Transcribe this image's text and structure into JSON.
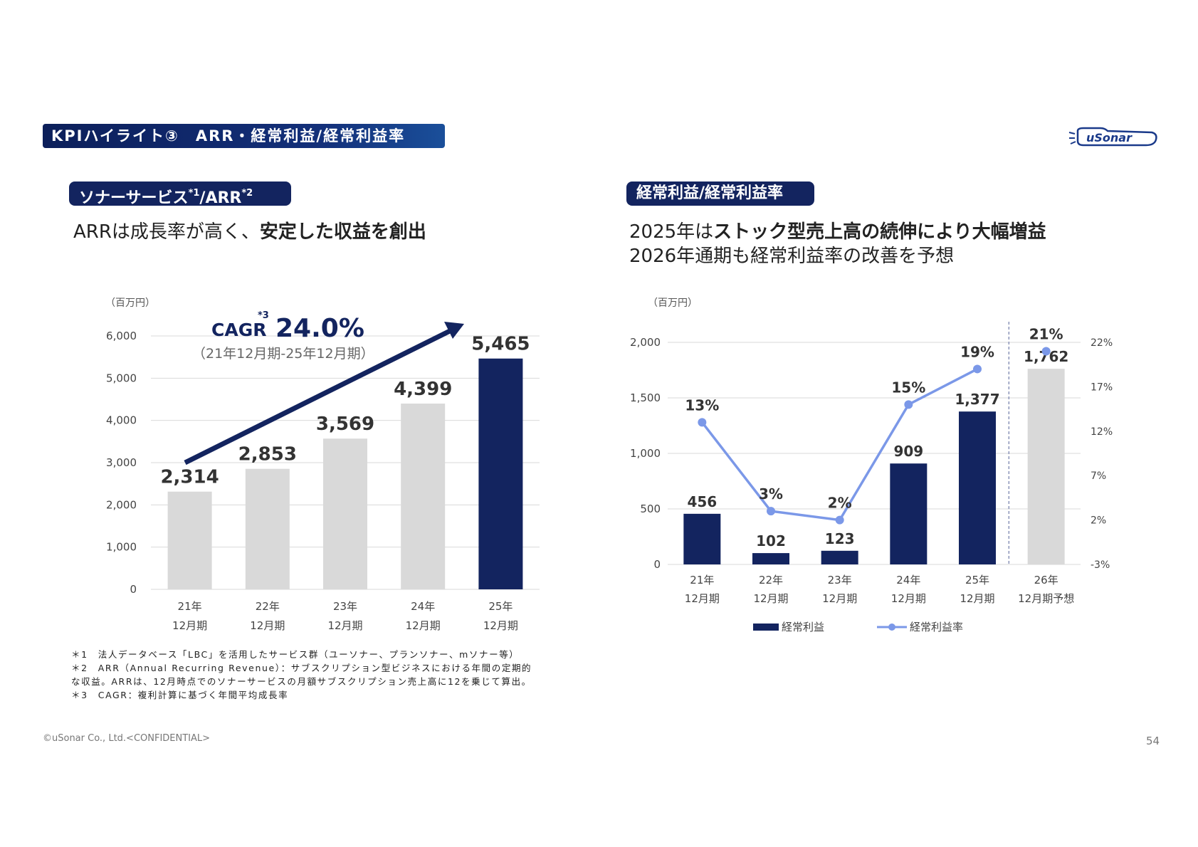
{
  "header": {
    "section_title": "KPIハイライト③　ARR・経常利益/経常利益率",
    "logo_text": "uSonar"
  },
  "left": {
    "pill_main": "ソナーサービス",
    "pill_sup1": "*1",
    "pill_mid": "/ARR",
    "pill_sup2": "*2",
    "headline_plain": "ARRは成長率が高く、",
    "headline_bold": "安定した収益を創出",
    "cagr_label": "CAGR",
    "cagr_sup": "*3",
    "cagr_value": "24.0%",
    "cagr_period": "（21年12月期-25年12月期）"
  },
  "right": {
    "pill": "経常利益/経常利益率",
    "headline1_plain": "2025年は",
    "headline1_bold": "ストック型売上高の続伸により大幅増益",
    "headline2": "2026年通期も経常利益率の改善を予想"
  },
  "notes": [
    "＊1　法人データベース「LBC」を活用したサービス群（ユーソナー、プランソナー、mソナー等）",
    "＊2　ARR（Annual Recurring Revenue）：サブスクリプション型ビジネスにおける年間の定期的",
    "な収益。ARRは、12月時点でのソナーサービスの月額サブスクリプション売上高に12を乗じて算出。",
    "＊3　CAGR：複利計算に基づく年間平均成長率"
  ],
  "footer": {
    "copyright": "©uSonar Co., Ltd.<CONFIDENTIAL>",
    "page_number": "54"
  },
  "colors": {
    "navy": "#13245f",
    "gray_bar": "#d9d9d9",
    "line": "#7b98e8",
    "grid": "#d9d9d9"
  },
  "chart_data": [
    {
      "type": "bar",
      "unit": "（百万円）",
      "categories": [
        [
          "21年",
          "12月期"
        ],
        [
          "22年",
          "12月期"
        ],
        [
          "23年",
          "12月期"
        ],
        [
          "24年",
          "12月期"
        ],
        [
          "25年",
          "12月期"
        ]
      ],
      "values": [
        2314,
        2853,
        3569,
        4399,
        5465
      ],
      "value_labels": [
        "2,314",
        "2,853",
        "3,569",
        "4,399",
        "5,465"
      ],
      "highlight_index": 4,
      "ylim": [
        0,
        6000
      ],
      "yticks": [
        "0",
        "1,000",
        "2,000",
        "3,000",
        "4,000",
        "5,000",
        "6,000"
      ],
      "grid": true
    },
    {
      "type": "bar+line",
      "unit": "（百万円）",
      "categories": [
        [
          "21年",
          "12月期"
        ],
        [
          "22年",
          "12月期"
        ],
        [
          "23年",
          "12月期"
        ],
        [
          "24年",
          "12月期"
        ],
        [
          "25年",
          "12月期"
        ],
        [
          "26年",
          "12月期予想"
        ]
      ],
      "series": [
        {
          "name": "経常利益",
          "type": "bar",
          "values": [
            456,
            102,
            123,
            909,
            1377,
            1762
          ],
          "labels": [
            "456",
            "102",
            "123",
            "909",
            "1,377",
            "1,762"
          ],
          "forecast_index": 5
        },
        {
          "name": "経常利益率",
          "type": "line",
          "axis": "right",
          "values": [
            13,
            3,
            2,
            15,
            19,
            21
          ],
          "labels": [
            "13%",
            "3%",
            "2%",
            "15%",
            "19%",
            "21%"
          ],
          "forecast_index": 5
        }
      ],
      "ylim": [
        0,
        2000
      ],
      "yticks": [
        "0",
        "500",
        "1,000",
        "1,500",
        "2,000"
      ],
      "y2lim": [
        -3,
        22
      ],
      "y2ticks": [
        "-3%",
        "2%",
        "7%",
        "12%",
        "17%",
        "22%"
      ],
      "legend": "bottom",
      "grid": true
    }
  ]
}
